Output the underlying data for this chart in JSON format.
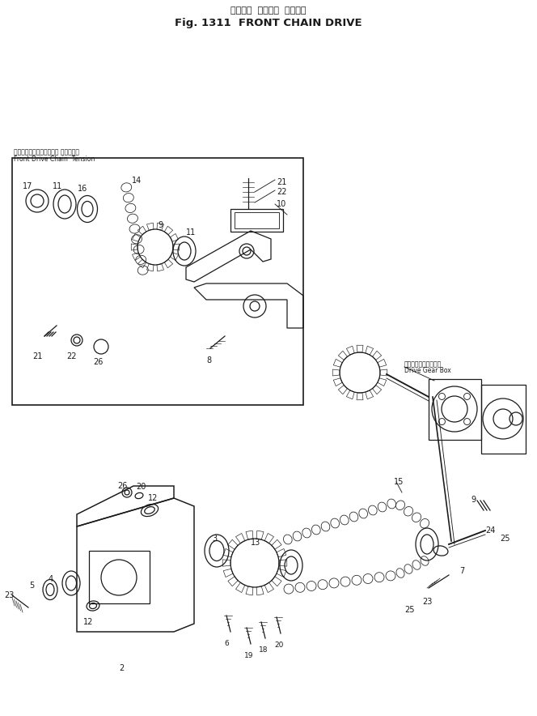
{
  "title_jp": "フロント  チェーン  ドライブ",
  "title_en": "Fig. 1311  FRONT CHAIN DRIVE",
  "inset_label_jp": "フロントドライブチェーン テンション",
  "inset_label_en": "Front Drive Chain  Tension",
  "gearbox_label_jp": "ドライブギヤボックス",
  "gearbox_label_en": "Drive Gear Box",
  "bg_color": "#ffffff",
  "line_color": "#1a1a1a",
  "fig_w": 6.64,
  "fig_h": 8.84,
  "dpi": 100
}
